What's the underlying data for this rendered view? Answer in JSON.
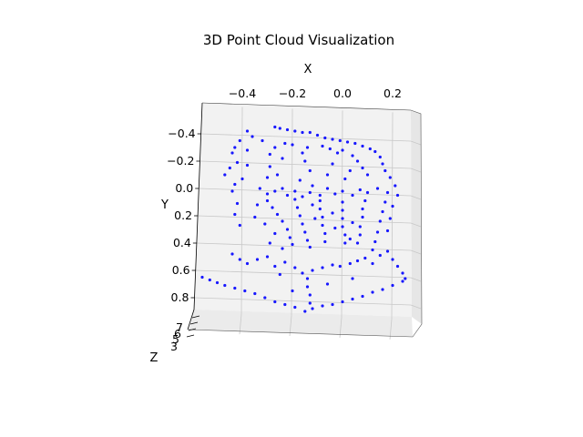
{
  "chart_data": {
    "type": "scatter",
    "projection": "3d",
    "title": "3D Point Cloud Visualization",
    "xlabel": "X",
    "ylabel": "Y",
    "zlabel": "Z",
    "x_ticks": [
      "−0.4",
      "−0.2",
      "0.0",
      "0.2"
    ],
    "y_ticks": [
      "−0.4",
      "−0.2",
      "0.0",
      "0.2",
      "0.4",
      "0.6",
      "0.8"
    ],
    "z_ticks": [
      "3",
      "5",
      "6",
      "7"
    ],
    "xlim": [
      -0.58,
      0.27
    ],
    "ylim": [
      -0.55,
      0.93
    ],
    "grid": true,
    "marker_color": "#0000ff",
    "points": [
      {
        "x": -0.27,
        "y": -0.45
      },
      {
        "x": -0.25,
        "y": -0.44
      },
      {
        "x": -0.22,
        "y": -0.43
      },
      {
        "x": -0.19,
        "y": -0.42
      },
      {
        "x": -0.16,
        "y": -0.41
      },
      {
        "x": -0.13,
        "y": -0.41
      },
      {
        "x": -0.1,
        "y": -0.39
      },
      {
        "x": -0.07,
        "y": -0.37
      },
      {
        "x": -0.04,
        "y": -0.36
      },
      {
        "x": -0.01,
        "y": -0.35
      },
      {
        "x": 0.02,
        "y": -0.34
      },
      {
        "x": 0.05,
        "y": -0.33
      },
      {
        "x": 0.08,
        "y": -0.31
      },
      {
        "x": 0.11,
        "y": -0.29
      },
      {
        "x": 0.13,
        "y": -0.27
      },
      {
        "x": 0.15,
        "y": -0.23
      },
      {
        "x": 0.16,
        "y": -0.18
      },
      {
        "x": 0.17,
        "y": -0.13
      },
      {
        "x": 0.19,
        "y": -0.08
      },
      {
        "x": 0.21,
        "y": -0.02
      },
      {
        "x": -0.38,
        "y": -0.42
      },
      {
        "x": -0.36,
        "y": -0.38
      },
      {
        "x": -0.32,
        "y": -0.35
      },
      {
        "x": -0.41,
        "y": -0.35
      },
      {
        "x": -0.43,
        "y": -0.3
      },
      {
        "x": -0.44,
        "y": -0.26
      },
      {
        "x": -0.38,
        "y": -0.28
      },
      {
        "x": -0.42,
        "y": -0.19
      },
      {
        "x": -0.45,
        "y": -0.15
      },
      {
        "x": -0.47,
        "y": -0.1
      },
      {
        "x": -0.43,
        "y": -0.03
      },
      {
        "x": -0.44,
        "y": 0.02
      },
      {
        "x": -0.42,
        "y": 0.11
      },
      {
        "x": -0.43,
        "y": 0.19
      },
      {
        "x": -0.41,
        "y": 0.27
      },
      {
        "x": -0.4,
        "y": -0.07
      },
      {
        "x": -0.38,
        "y": -0.17
      },
      {
        "x": -0.23,
        "y": -0.33
      },
      {
        "x": -0.2,
        "y": -0.32
      },
      {
        "x": -0.27,
        "y": -0.3
      },
      {
        "x": -0.29,
        "y": -0.25
      },
      {
        "x": -0.24,
        "y": -0.22
      },
      {
        "x": -0.29,
        "y": -0.16
      },
      {
        "x": -0.26,
        "y": -0.1
      },
      {
        "x": -0.3,
        "y": -0.08
      },
      {
        "x": -0.16,
        "y": -0.26
      },
      {
        "x": -0.14,
        "y": -0.3
      },
      {
        "x": -0.15,
        "y": -0.2
      },
      {
        "x": -0.13,
        "y": -0.13
      },
      {
        "x": -0.17,
        "y": -0.06
      },
      {
        "x": -0.12,
        "y": -0.02
      },
      {
        "x": -0.08,
        "y": -0.31
      },
      {
        "x": -0.05,
        "y": -0.29
      },
      {
        "x": -0.02,
        "y": -0.26
      },
      {
        "x": 0.0,
        "y": -0.28
      },
      {
        "x": 0.04,
        "y": -0.24
      },
      {
        "x": 0.06,
        "y": -0.2
      },
      {
        "x": 0.03,
        "y": -0.13
      },
      {
        "x": 0.08,
        "y": -0.15
      },
      {
        "x": 0.1,
        "y": -0.1
      },
      {
        "x": -0.04,
        "y": -0.18
      },
      {
        "x": -0.06,
        "y": -0.1
      },
      {
        "x": 0.01,
        "y": -0.07
      },
      {
        "x": -0.33,
        "y": 0.0
      },
      {
        "x": -0.3,
        "y": 0.04
      },
      {
        "x": -0.27,
        "y": 0.02
      },
      {
        "x": -0.24,
        "y": 0.0
      },
      {
        "x": -0.22,
        "y": 0.05
      },
      {
        "x": -0.19,
        "y": 0.02
      },
      {
        "x": -0.16,
        "y": 0.06
      },
      {
        "x": -0.13,
        "y": 0.03
      },
      {
        "x": -0.09,
        "y": 0.05
      },
      {
        "x": -0.06,
        "y": 0.0
      },
      {
        "x": -0.03,
        "y": 0.04
      },
      {
        "x": 0.0,
        "y": 0.02
      },
      {
        "x": 0.04,
        "y": 0.05
      },
      {
        "x": 0.07,
        "y": 0.01
      },
      {
        "x": 0.1,
        "y": 0.03
      },
      {
        "x": 0.14,
        "y": 0.0
      },
      {
        "x": 0.18,
        "y": 0.03
      },
      {
        "x": 0.22,
        "y": 0.05
      },
      {
        "x": -0.3,
        "y": 0.09
      },
      {
        "x": -0.28,
        "y": 0.14
      },
      {
        "x": -0.26,
        "y": 0.19
      },
      {
        "x": -0.24,
        "y": 0.24
      },
      {
        "x": -0.22,
        "y": 0.3
      },
      {
        "x": -0.21,
        "y": 0.36
      },
      {
        "x": -0.2,
        "y": 0.41
      },
      {
        "x": -0.19,
        "y": 0.08
      },
      {
        "x": -0.18,
        "y": 0.14
      },
      {
        "x": -0.17,
        "y": 0.2
      },
      {
        "x": -0.16,
        "y": 0.26
      },
      {
        "x": -0.15,
        "y": 0.32
      },
      {
        "x": -0.14,
        "y": 0.38
      },
      {
        "x": -0.13,
        "y": 0.43
      },
      {
        "x": -0.09,
        "y": 0.09
      },
      {
        "x": -0.09,
        "y": 0.15
      },
      {
        "x": -0.08,
        "y": 0.21
      },
      {
        "x": -0.08,
        "y": 0.27
      },
      {
        "x": -0.07,
        "y": 0.33
      },
      {
        "x": -0.07,
        "y": 0.39
      },
      {
        "x": 0.0,
        "y": 0.1
      },
      {
        "x": 0.0,
        "y": 0.16
      },
      {
        "x": 0.0,
        "y": 0.22
      },
      {
        "x": 0.0,
        "y": 0.28
      },
      {
        "x": 0.01,
        "y": 0.34
      },
      {
        "x": 0.01,
        "y": 0.4
      },
      {
        "x": 0.09,
        "y": 0.09
      },
      {
        "x": 0.08,
        "y": 0.15
      },
      {
        "x": 0.08,
        "y": 0.21
      },
      {
        "x": 0.07,
        "y": 0.28
      },
      {
        "x": 0.07,
        "y": 0.34
      },
      {
        "x": 0.06,
        "y": 0.4
      },
      {
        "x": 0.17,
        "y": 0.1
      },
      {
        "x": 0.16,
        "y": 0.17
      },
      {
        "x": 0.15,
        "y": 0.24
      },
      {
        "x": 0.14,
        "y": 0.32
      },
      {
        "x": 0.13,
        "y": 0.39
      },
      {
        "x": 0.12,
        "y": 0.45
      },
      {
        "x": 0.2,
        "y": 0.13
      },
      {
        "x": 0.19,
        "y": 0.22
      },
      {
        "x": 0.18,
        "y": 0.31
      },
      {
        "x": -0.34,
        "y": 0.12
      },
      {
        "x": -0.35,
        "y": 0.21
      },
      {
        "x": -0.31,
        "y": 0.26
      },
      {
        "x": -0.27,
        "y": 0.33
      },
      {
        "x": -0.29,
        "y": 0.4
      },
      {
        "x": -0.24,
        "y": 0.44
      },
      {
        "x": -0.12,
        "y": 0.12
      },
      {
        "x": -0.11,
        "y": 0.22
      },
      {
        "x": -0.04,
        "y": 0.18
      },
      {
        "x": -0.03,
        "y": 0.29
      },
      {
        "x": 0.04,
        "y": 0.25
      },
      {
        "x": 0.03,
        "y": 0.37
      },
      {
        "x": -0.44,
        "y": 0.48
      },
      {
        "x": -0.41,
        "y": 0.52
      },
      {
        "x": -0.38,
        "y": 0.55
      },
      {
        "x": -0.34,
        "y": 0.52
      },
      {
        "x": -0.3,
        "y": 0.5
      },
      {
        "x": -0.27,
        "y": 0.57
      },
      {
        "x": -0.23,
        "y": 0.54
      },
      {
        "x": -0.19,
        "y": 0.58
      },
      {
        "x": -0.16,
        "y": 0.62
      },
      {
        "x": -0.12,
        "y": 0.6
      },
      {
        "x": -0.08,
        "y": 0.58
      },
      {
        "x": -0.04,
        "y": 0.56
      },
      {
        "x": -0.01,
        "y": 0.57
      },
      {
        "x": 0.03,
        "y": 0.55
      },
      {
        "x": 0.06,
        "y": 0.53
      },
      {
        "x": 0.09,
        "y": 0.51
      },
      {
        "x": 0.12,
        "y": 0.55
      },
      {
        "x": 0.15,
        "y": 0.49
      },
      {
        "x": 0.18,
        "y": 0.46
      },
      {
        "x": 0.2,
        "y": 0.52
      },
      {
        "x": 0.22,
        "y": 0.57
      },
      {
        "x": 0.24,
        "y": 0.62
      },
      {
        "x": 0.25,
        "y": 0.66
      },
      {
        "x": -0.56,
        "y": 0.65
      },
      {
        "x": -0.53,
        "y": 0.67
      },
      {
        "x": -0.5,
        "y": 0.69
      },
      {
        "x": -0.47,
        "y": 0.71
      },
      {
        "x": -0.43,
        "y": 0.73
      },
      {
        "x": -0.39,
        "y": 0.75
      },
      {
        "x": -0.35,
        "y": 0.77
      },
      {
        "x": -0.31,
        "y": 0.8
      },
      {
        "x": -0.27,
        "y": 0.83
      },
      {
        "x": -0.23,
        "y": 0.85
      },
      {
        "x": -0.19,
        "y": 0.87
      },
      {
        "x": -0.15,
        "y": 0.9
      },
      {
        "x": -0.12,
        "y": 0.88
      },
      {
        "x": -0.08,
        "y": 0.86
      },
      {
        "x": -0.04,
        "y": 0.85
      },
      {
        "x": 0.0,
        "y": 0.83
      },
      {
        "x": 0.04,
        "y": 0.81
      },
      {
        "x": 0.08,
        "y": 0.79
      },
      {
        "x": 0.12,
        "y": 0.76
      },
      {
        "x": 0.16,
        "y": 0.74
      },
      {
        "x": 0.2,
        "y": 0.71
      },
      {
        "x": 0.24,
        "y": 0.68
      },
      {
        "x": -0.14,
        "y": 0.66
      },
      {
        "x": -0.14,
        "y": 0.72
      },
      {
        "x": -0.13,
        "y": 0.78
      },
      {
        "x": -0.13,
        "y": 0.84
      },
      {
        "x": -0.25,
        "y": 0.63
      },
      {
        "x": -0.06,
        "y": 0.7
      },
      {
        "x": 0.04,
        "y": 0.66
      },
      {
        "x": -0.2,
        "y": 0.75
      }
    ]
  }
}
